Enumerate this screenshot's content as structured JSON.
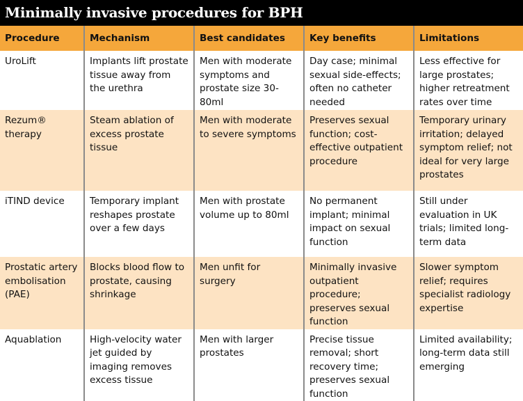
{
  "title": "Minimally invasive procedures for BPH",
  "colors": {
    "header": "#f5a73b",
    "stripe": "#fde3c3",
    "title_bg": "#000000"
  },
  "headers": [
    "Procedure",
    "Mechanism",
    "Best candidates",
    "Key benefits",
    "Limitations"
  ],
  "rows": [
    [
      "UroLift",
      "Implants lift prostate tissue away from the urethra",
      "Men with moderate symptoms and prostate size 30-80ml",
      "Day case; minimal sexual side-effects; often no catheter needed",
      "Less effective for large prostates; higher retreatment rates over time"
    ],
    [
      "Rezum® therapy",
      "Steam ablation of excess prostate tissue",
      "Men with moderate to severe symptoms",
      "Preserves sexual function; cost-effective outpatient procedure",
      "Temporary urinary irritation; delayed symptom relief; not ideal for very large prostates"
    ],
    [
      "iTIND device",
      "Temporary implant reshapes prostate over a few days",
      "Men with prostate volume up to 80ml",
      "No permanent implant; minimal impact on sexual function",
      "Still under evaluation in UK trials; limited long-term data"
    ],
    [
      "Prostatic artery embolisation (PAE)",
      "Blocks blood flow to prostate, causing shrinkage",
      "Men unfit for surgery",
      "Minimally invasive outpatient procedure; preserves sexual function",
      "Slower symptom relief; requires specialist radiology expertise"
    ],
    [
      "Aquablation",
      "High-velocity water jet guided by imaging removes excess tissue",
      "Men with larger prostates",
      "Precise tissue removal; short recovery time; preserves sexual function",
      "Limited availability; long-term data still emerging"
    ]
  ]
}
